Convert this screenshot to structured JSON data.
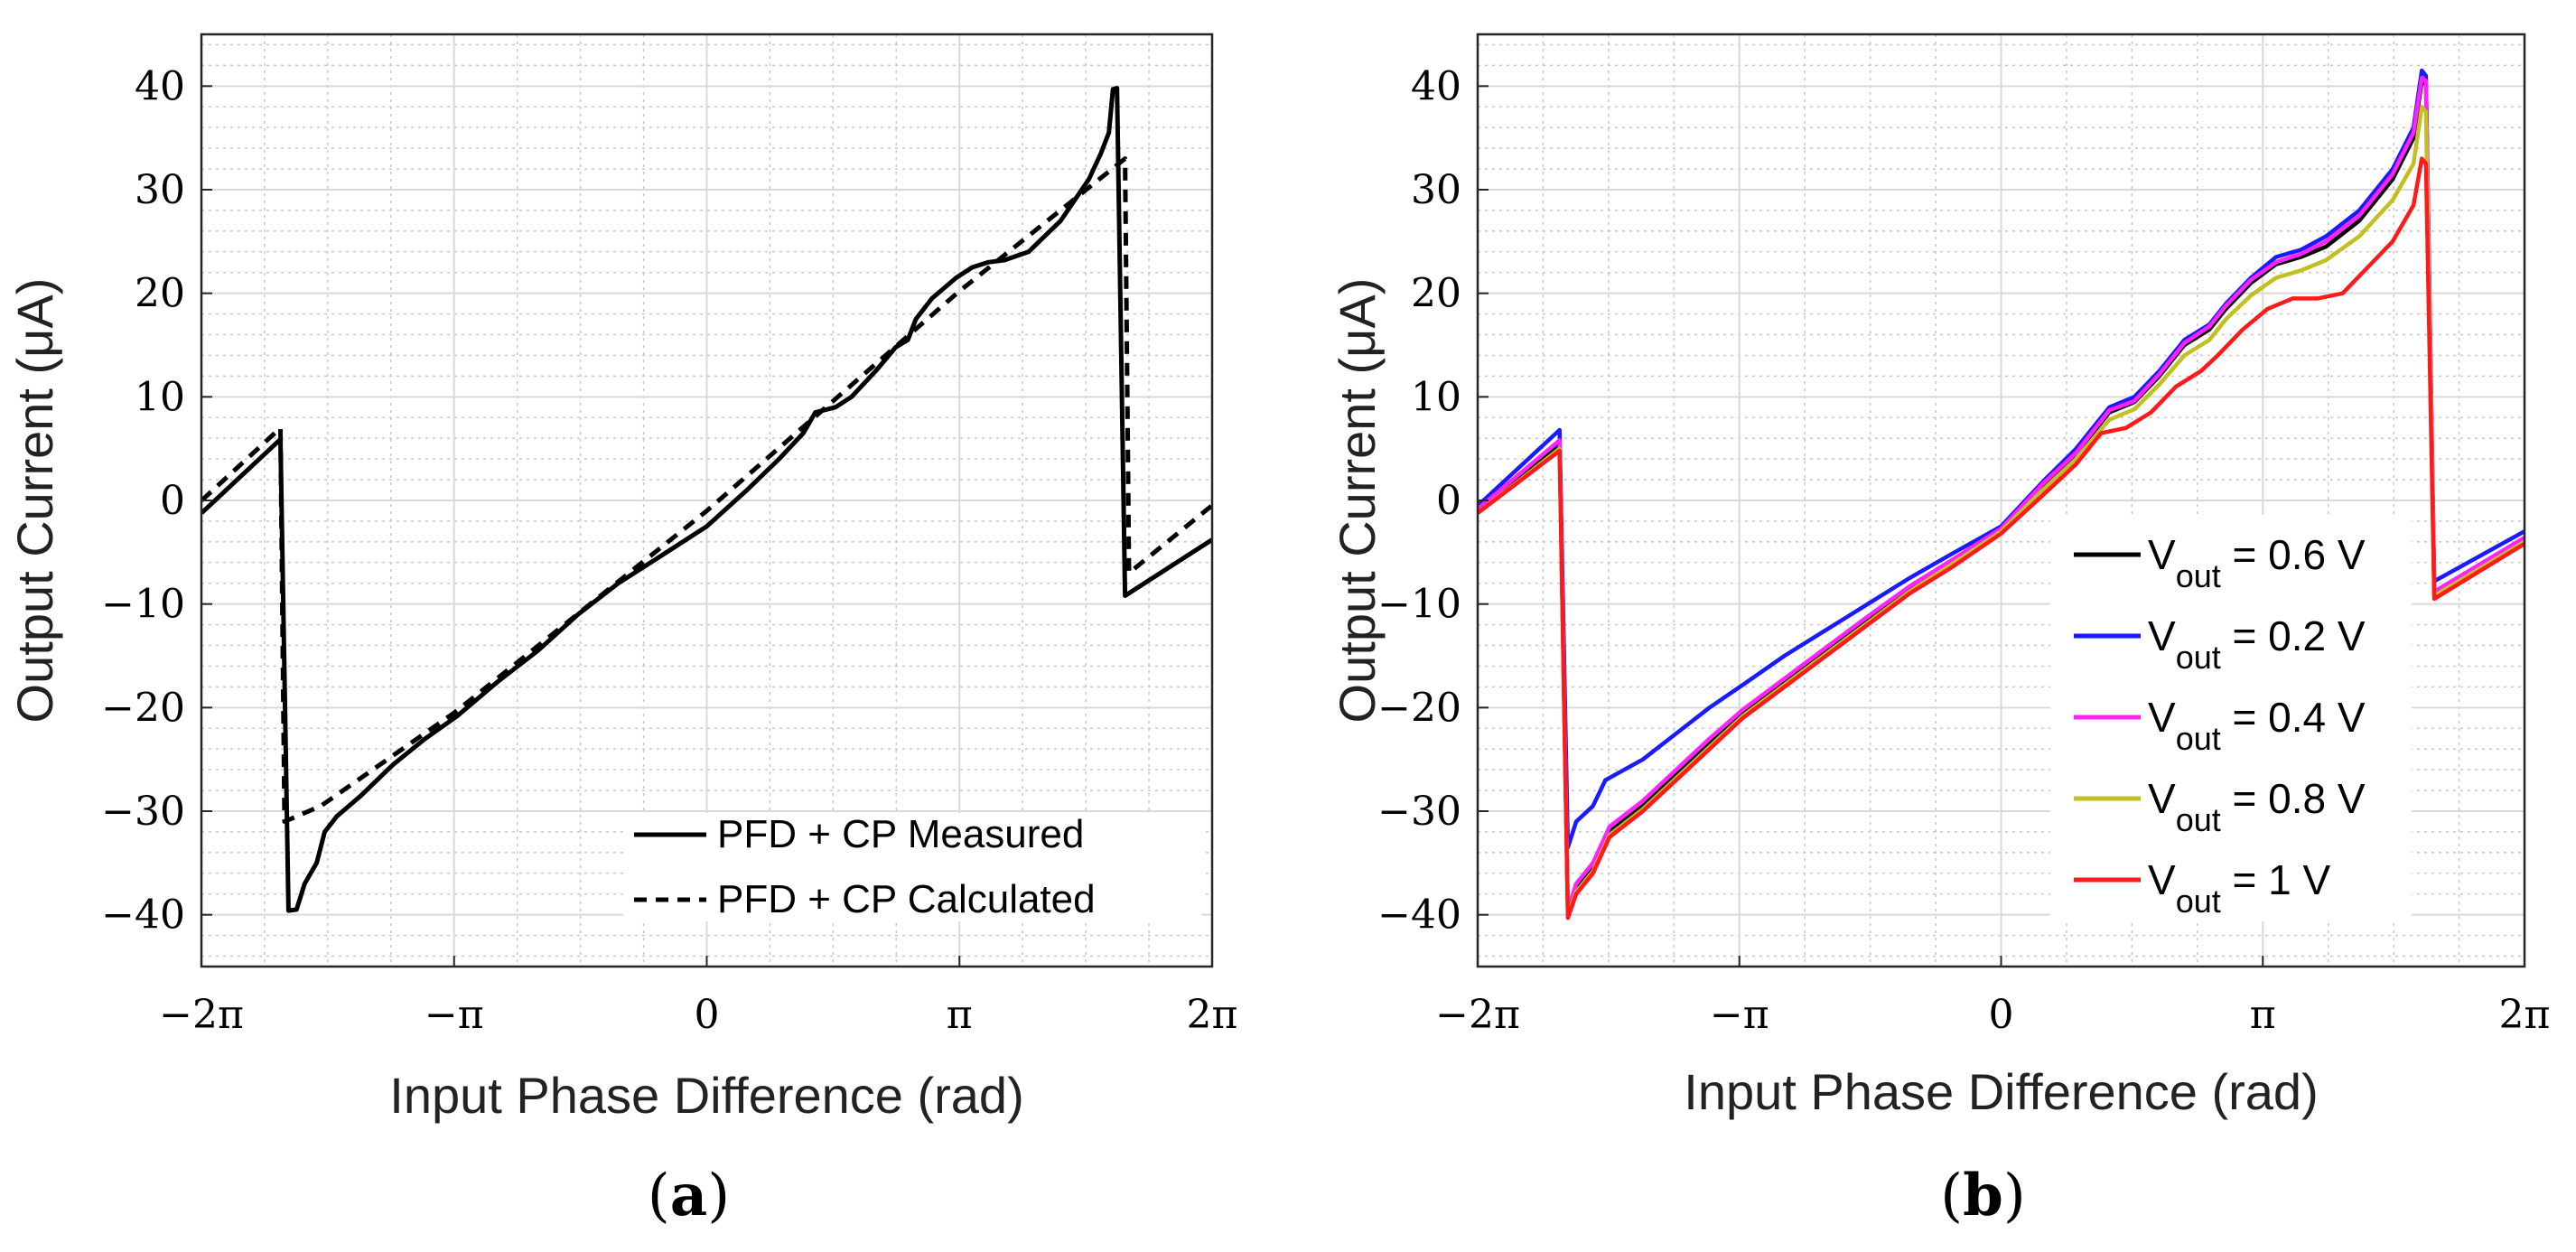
{
  "chart_data": [
    {
      "panel": "a",
      "type": "line",
      "caption_letter": "a",
      "xlabel": "Input Phase Difference (rad)",
      "ylabel": "Output Current (μA)",
      "xlim_rad": [
        -6.283,
        6.283
      ],
      "ylim": [
        -45,
        45
      ],
      "x_ticks": [
        {
          "v": -6.283,
          "label": "−2π"
        },
        {
          "v": -3.1416,
          "label": "−π"
        },
        {
          "v": 0,
          "label": "0"
        },
        {
          "v": 3.1416,
          "label": "π"
        },
        {
          "v": 6.283,
          "label": "2π"
        }
      ],
      "y_ticks": [
        {
          "v": 40,
          "label": "40"
        },
        {
          "v": 30,
          "label": "30"
        },
        {
          "v": 20,
          "label": "20"
        },
        {
          "v": 10,
          "label": "10"
        },
        {
          "v": 0,
          "label": "0"
        },
        {
          "v": -10,
          "label": "−10"
        },
        {
          "v": -20,
          "label": "−20"
        },
        {
          "v": -30,
          "label": "−30"
        },
        {
          "v": -40,
          "label": "−40"
        }
      ],
      "grid": true,
      "legend_position": "bottom-right",
      "series": [
        {
          "name": "PFD + CP Measured",
          "color": "#000000",
          "dash": "solid",
          "points": [
            [
              -6.28,
              -1.2
            ],
            [
              -5.3,
              5.9
            ],
            [
              -5.2,
              -39.6
            ],
            [
              -5.1,
              -39.5
            ],
            [
              -5.0,
              -37.0
            ],
            [
              -4.85,
              -35.0
            ],
            [
              -4.75,
              -32.0
            ],
            [
              -4.6,
              -30.5
            ],
            [
              -4.3,
              -28.5
            ],
            [
              -3.9,
              -25.5
            ],
            [
              -3.5,
              -23.0
            ],
            [
              -3.1,
              -20.8
            ],
            [
              -2.6,
              -17.5
            ],
            [
              -2.1,
              -14.5
            ],
            [
              -1.6,
              -11.0
            ],
            [
              -1.1,
              -8.0
            ],
            [
              -0.6,
              -5.5
            ],
            [
              0,
              -2.5
            ],
            [
              0.5,
              1.0
            ],
            [
              0.9,
              4.0
            ],
            [
              1.2,
              6.5
            ],
            [
              1.35,
              8.5
            ],
            [
              1.6,
              9.0
            ],
            [
              1.8,
              10.0
            ],
            [
              2.1,
              12.5
            ],
            [
              2.35,
              14.8
            ],
            [
              2.5,
              15.5
            ],
            [
              2.6,
              17.5
            ],
            [
              2.8,
              19.5
            ],
            [
              3.1,
              21.5
            ],
            [
              3.3,
              22.5
            ],
            [
              3.5,
              23.0
            ],
            [
              3.7,
              23.2
            ],
            [
              4.0,
              24.0
            ],
            [
              4.4,
              27.0
            ],
            [
              4.75,
              31.0
            ],
            [
              4.9,
              33.5
            ],
            [
              5.0,
              35.5
            ],
            [
              5.05,
              39.7
            ],
            [
              5.1,
              39.8
            ],
            [
              5.2,
              -9.2
            ],
            [
              6.28,
              -3.8
            ]
          ]
        },
        {
          "name": "PFD + CP Calculated",
          "color": "#000000",
          "dash": "dashed",
          "points": [
            [
              -6.28,
              0.0
            ],
            [
              -5.3,
              7.0
            ],
            [
              -5.25,
              -31.0
            ],
            [
              -4.8,
              -29.5
            ],
            [
              -3.14,
              -20.5
            ],
            [
              0,
              -1.0
            ],
            [
              3.14,
              20.2
            ],
            [
              5.2,
              33.0
            ],
            [
              5.25,
              -7.0
            ],
            [
              6.28,
              -0.5
            ]
          ]
        }
      ]
    },
    {
      "panel": "b",
      "type": "line",
      "caption_letter": "b",
      "xlabel": "Input Phase Difference (rad)",
      "ylabel": "Output Current (μA)",
      "xlim_rad": [
        -6.283,
        6.283
      ],
      "ylim": [
        -45,
        45
      ],
      "x_ticks": [
        {
          "v": -6.283,
          "label": "−2π"
        },
        {
          "v": -3.1416,
          "label": "−π"
        },
        {
          "v": 0,
          "label": "0"
        },
        {
          "v": 3.1416,
          "label": "π"
        },
        {
          "v": 6.283,
          "label": "2π"
        }
      ],
      "y_ticks": [
        {
          "v": 40,
          "label": "40"
        },
        {
          "v": 30,
          "label": "30"
        },
        {
          "v": 20,
          "label": "20"
        },
        {
          "v": 10,
          "label": "10"
        },
        {
          "v": 0,
          "label": "0"
        },
        {
          "v": -10,
          "label": "−10"
        },
        {
          "v": -20,
          "label": "−20"
        },
        {
          "v": -30,
          "label": "−30"
        },
        {
          "v": -40,
          "label": "−40"
        }
      ],
      "grid": true,
      "legend_position": "right-center",
      "series": [
        {
          "name": "Vout = 0.6 V",
          "legend_main": "V",
          "legend_sub": "out",
          "legend_rest": " = 0.6 V",
          "color": "#000000",
          "points": [
            [
              -6.28,
              -1.0
            ],
            [
              -5.3,
              5.5
            ],
            [
              -5.2,
              -40.0
            ],
            [
              -5.1,
              -37.5
            ],
            [
              -4.9,
              -35.5
            ],
            [
              -4.7,
              -32.0
            ],
            [
              -4.3,
              -29.5
            ],
            [
              -3.9,
              -26.5
            ],
            [
              -3.5,
              -23.5
            ],
            [
              -3.1,
              -20.5
            ],
            [
              -2.6,
              -17.5
            ],
            [
              -2.1,
              -14.5
            ],
            [
              -1.6,
              -11.5
            ],
            [
              -1.1,
              -8.5
            ],
            [
              -0.6,
              -6.0
            ],
            [
              0,
              -2.8
            ],
            [
              0.5,
              1.5
            ],
            [
              0.9,
              4.5
            ],
            [
              1.3,
              8.5
            ],
            [
              1.6,
              9.5
            ],
            [
              1.9,
              12.0
            ],
            [
              2.2,
              15.0
            ],
            [
              2.5,
              16.5
            ],
            [
              2.7,
              18.5
            ],
            [
              3.0,
              21.0
            ],
            [
              3.3,
              22.8
            ],
            [
              3.6,
              23.5
            ],
            [
              3.9,
              24.5
            ],
            [
              4.3,
              27.0
            ],
            [
              4.7,
              31.0
            ],
            [
              4.95,
              35.0
            ],
            [
              5.05,
              40.5
            ],
            [
              5.1,
              40.2
            ],
            [
              5.2,
              -9.0
            ],
            [
              6.28,
              -3.8
            ]
          ]
        },
        {
          "name": "Vout = 0.2 V",
          "legend_main": "V",
          "legend_sub": "out",
          "legend_rest": " = 0.2 V",
          "color": "#1a1aff",
          "points": [
            [
              -6.28,
              -0.5
            ],
            [
              -5.3,
              6.8
            ],
            [
              -5.2,
              -33.5
            ],
            [
              -5.1,
              -31.0
            ],
            [
              -4.9,
              -29.5
            ],
            [
              -4.75,
              -27.0
            ],
            [
              -4.3,
              -25.0
            ],
            [
              -3.9,
              -22.5
            ],
            [
              -3.5,
              -20.0
            ],
            [
              -3.1,
              -17.8
            ],
            [
              -2.6,
              -15.0
            ],
            [
              -2.1,
              -12.5
            ],
            [
              -1.6,
              -10.0
            ],
            [
              -1.1,
              -7.5
            ],
            [
              -0.6,
              -5.2
            ],
            [
              0,
              -2.5
            ],
            [
              0.5,
              1.8
            ],
            [
              0.9,
              5.0
            ],
            [
              1.3,
              9.0
            ],
            [
              1.6,
              10.0
            ],
            [
              1.9,
              12.5
            ],
            [
              2.2,
              15.5
            ],
            [
              2.5,
              17.0
            ],
            [
              2.7,
              19.0
            ],
            [
              3.0,
              21.5
            ],
            [
              3.3,
              23.5
            ],
            [
              3.6,
              24.2
            ],
            [
              3.9,
              25.5
            ],
            [
              4.3,
              28.0
            ],
            [
              4.7,
              32.0
            ],
            [
              4.95,
              36.0
            ],
            [
              5.05,
              41.5
            ],
            [
              5.1,
              41.0
            ],
            [
              5.2,
              -7.8
            ],
            [
              6.28,
              -3.0
            ]
          ]
        },
        {
          "name": "Vout = 0.4 V",
          "legend_main": "V",
          "legend_sub": "out",
          "legend_rest": " = 0.4 V",
          "color": "#ff22ff",
          "points": [
            [
              -6.28,
              -0.8
            ],
            [
              -5.3,
              5.8
            ],
            [
              -5.2,
              -39.5
            ],
            [
              -5.1,
              -37.0
            ],
            [
              -4.9,
              -35.0
            ],
            [
              -4.7,
              -31.5
            ],
            [
              -4.3,
              -29.0
            ],
            [
              -3.9,
              -26.0
            ],
            [
              -3.5,
              -23.0
            ],
            [
              -3.1,
              -20.2
            ],
            [
              -2.6,
              -17.2
            ],
            [
              -2.1,
              -14.2
            ],
            [
              -1.6,
              -11.2
            ],
            [
              -1.1,
              -8.3
            ],
            [
              -0.6,
              -5.8
            ],
            [
              0,
              -2.7
            ],
            [
              0.5,
              1.6
            ],
            [
              0.9,
              4.6
            ],
            [
              1.3,
              8.7
            ],
            [
              1.6,
              9.6
            ],
            [
              1.9,
              12.2
            ],
            [
              2.2,
              15.2
            ],
            [
              2.5,
              16.8
            ],
            [
              2.7,
              18.8
            ],
            [
              3.0,
              21.3
            ],
            [
              3.3,
              23.0
            ],
            [
              3.6,
              23.8
            ],
            [
              3.9,
              25.0
            ],
            [
              4.3,
              27.5
            ],
            [
              4.7,
              31.5
            ],
            [
              4.95,
              35.5
            ],
            [
              5.05,
              40.8
            ],
            [
              5.1,
              40.5
            ],
            [
              5.2,
              -8.8
            ],
            [
              6.28,
              -3.6
            ]
          ]
        },
        {
          "name": "Vout = 0.8 V",
          "legend_main": "V",
          "legend_sub": "out",
          "legend_rest": " = 0.8 V",
          "color": "#c0c020",
          "points": [
            [
              -6.28,
              -1.2
            ],
            [
              -5.3,
              5.0
            ],
            [
              -5.2,
              -40.0
            ],
            [
              -5.1,
              -37.8
            ],
            [
              -4.9,
              -35.8
            ],
            [
              -4.7,
              -32.3
            ],
            [
              -4.3,
              -29.8
            ],
            [
              -3.9,
              -26.8
            ],
            [
              -3.5,
              -23.8
            ],
            [
              -3.1,
              -20.8
            ],
            [
              -2.6,
              -17.8
            ],
            [
              -2.1,
              -14.8
            ],
            [
              -1.6,
              -11.8
            ],
            [
              -1.1,
              -8.8
            ],
            [
              -0.6,
              -6.2
            ],
            [
              0,
              -3.0
            ],
            [
              0.5,
              1.0
            ],
            [
              0.9,
              4.0
            ],
            [
              1.3,
              7.8
            ],
            [
              1.6,
              8.8
            ],
            [
              1.9,
              11.2
            ],
            [
              2.2,
              14.0
            ],
            [
              2.5,
              15.5
            ],
            [
              2.7,
              17.5
            ],
            [
              3.0,
              19.8
            ],
            [
              3.3,
              21.5
            ],
            [
              3.6,
              22.2
            ],
            [
              3.9,
              23.2
            ],
            [
              4.3,
              25.5
            ],
            [
              4.7,
              29.0
            ],
            [
              4.95,
              32.5
            ],
            [
              5.05,
              38.0
            ],
            [
              5.1,
              37.5
            ],
            [
              5.2,
              -9.2
            ],
            [
              6.28,
              -4.0
            ]
          ]
        },
        {
          "name": "Vout = 1 V",
          "legend_main": "V",
          "legend_sub": "out",
          "legend_rest": " = 1 V",
          "color": "#ff1a1a",
          "points": [
            [
              -6.28,
              -1.2
            ],
            [
              -5.3,
              4.8
            ],
            [
              -5.2,
              -40.3
            ],
            [
              -5.1,
              -38.0
            ],
            [
              -4.9,
              -36.0
            ],
            [
              -4.7,
              -32.5
            ],
            [
              -4.3,
              -30.0
            ],
            [
              -3.9,
              -27.0
            ],
            [
              -3.5,
              -24.0
            ],
            [
              -3.1,
              -21.0
            ],
            [
              -2.6,
              -18.0
            ],
            [
              -2.1,
              -15.0
            ],
            [
              -1.6,
              -12.0
            ],
            [
              -1.1,
              -9.0
            ],
            [
              -0.6,
              -6.5
            ],
            [
              0,
              -3.2
            ],
            [
              0.5,
              0.5
            ],
            [
              0.9,
              3.5
            ],
            [
              1.2,
              6.5
            ],
            [
              1.5,
              7.0
            ],
            [
              1.8,
              8.5
            ],
            [
              2.1,
              11.0
            ],
            [
              2.4,
              12.5
            ],
            [
              2.6,
              14.0
            ],
            [
              2.9,
              16.5
            ],
            [
              3.2,
              18.5
            ],
            [
              3.5,
              19.5
            ],
            [
              3.8,
              19.5
            ],
            [
              4.1,
              20.0
            ],
            [
              4.4,
              22.5
            ],
            [
              4.7,
              25.0
            ],
            [
              4.95,
              28.5
            ],
            [
              5.05,
              33.0
            ],
            [
              5.1,
              32.5
            ],
            [
              5.2,
              -9.5
            ],
            [
              6.28,
              -4.2
            ]
          ]
        }
      ]
    }
  ]
}
